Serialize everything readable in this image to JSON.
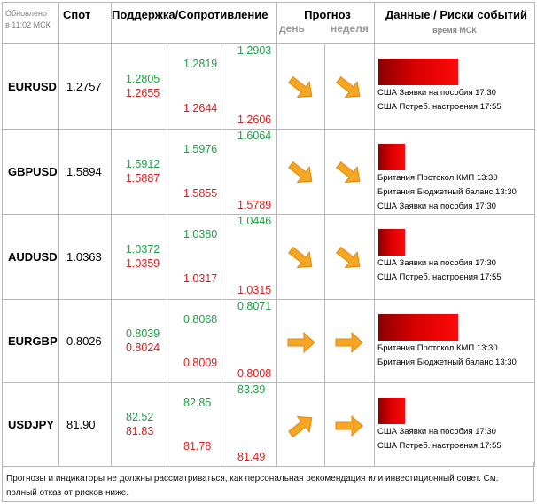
{
  "header": {
    "updated_line1": "Обновлено",
    "updated_line2": "в 11:02 МСК",
    "spot": "Спот",
    "support_resistance": "Поддержка/Сопротивление",
    "forecast": "Прогноз",
    "day": "день",
    "week": "неделя",
    "events": "Данные / Риски событий",
    "events_time": "время МСК"
  },
  "rows": [
    {
      "pair": "EURUSD",
      "spot": "1.2757",
      "s1_res": "1.2805",
      "s1_sup": "1.2655",
      "s2_res": "1.2819",
      "s2_sup": "1.2644",
      "s3_res": "1.2903",
      "s3_sup": "1.2606",
      "day_arrow": "arrow-down-right-icon",
      "week_arrow": "arrow-down-right-icon",
      "risk_level": 0.9,
      "events": [
        "США Заявки на пособия 17:30",
        "США Потреб. настроения  17:55"
      ]
    },
    {
      "pair": "GBPUSD",
      "spot": "1.5894",
      "s1_res": "1.5912",
      "s1_sup": "1.5887",
      "s2_res": "1.5976",
      "s2_sup": "1.5855",
      "s3_res": "1.6064",
      "s3_sup": "1.5789",
      "day_arrow": "arrow-down-right-icon",
      "week_arrow": "arrow-down-right-icon",
      "risk_level": 0.3,
      "events": [
        "Британия Протокол КМП 13:30",
        "Британия Бюджетный баланс 13:30",
        "США Заявки на пособия 17:30"
      ]
    },
    {
      "pair": "AUDUSD",
      "spot": "1.0363",
      "s1_res": "1.0372",
      "s1_sup": "1.0359",
      "s2_res": "1.0380",
      "s2_sup": "1.0317",
      "s3_res": "1.0446",
      "s3_sup": "1.0315",
      "day_arrow": "arrow-down-right-icon",
      "week_arrow": "arrow-down-right-icon",
      "risk_level": 0.3,
      "events": [
        "США Заявки на пособия 17:30",
        "США Потреб. настроения  17:55"
      ]
    },
    {
      "pair": "EURGBP",
      "spot": "0.8026",
      "s1_res": "0.8039",
      "s1_sup": "0.8024",
      "s2_res": "0.8068",
      "s2_sup": "0.8009",
      "s3_res": "0.8071",
      "s3_sup": "0.8008",
      "day_arrow": "arrow-right-icon",
      "week_arrow": "arrow-right-icon",
      "risk_level": 0.9,
      "events": [
        "Британия Протокол КМП 13:30",
        "Британия Бюджетный баланс 13:30"
      ]
    },
    {
      "pair": "USDJPY",
      "spot": "81.90",
      "s1_res": "82.52",
      "s1_sup": "81.83",
      "s2_res": "82.85",
      "s2_sup": "81.78",
      "s3_res": "83.39",
      "s3_sup": "81.49",
      "day_arrow": "arrow-up-right-icon",
      "week_arrow": "arrow-right-icon",
      "risk_level": 0.3,
      "events": [
        "США Заявки на пособия 17:30",
        "США Потреб. настроения  17:55"
      ]
    }
  ],
  "disclaimer": "Прогнозы и индикаторы не должны рассматриваться, как персональная рекомендация или инвестиционный совет. См. полный отказ от рисков ниже.",
  "colors": {
    "support_green": "#1ea046",
    "resistance_red": "#e01a1a",
    "arrow_orange": "#f5a623",
    "risk_bar_dark": "#8a0000",
    "risk_bar_light": "#ff0a0a",
    "grid_line": "#b8b8b8"
  }
}
